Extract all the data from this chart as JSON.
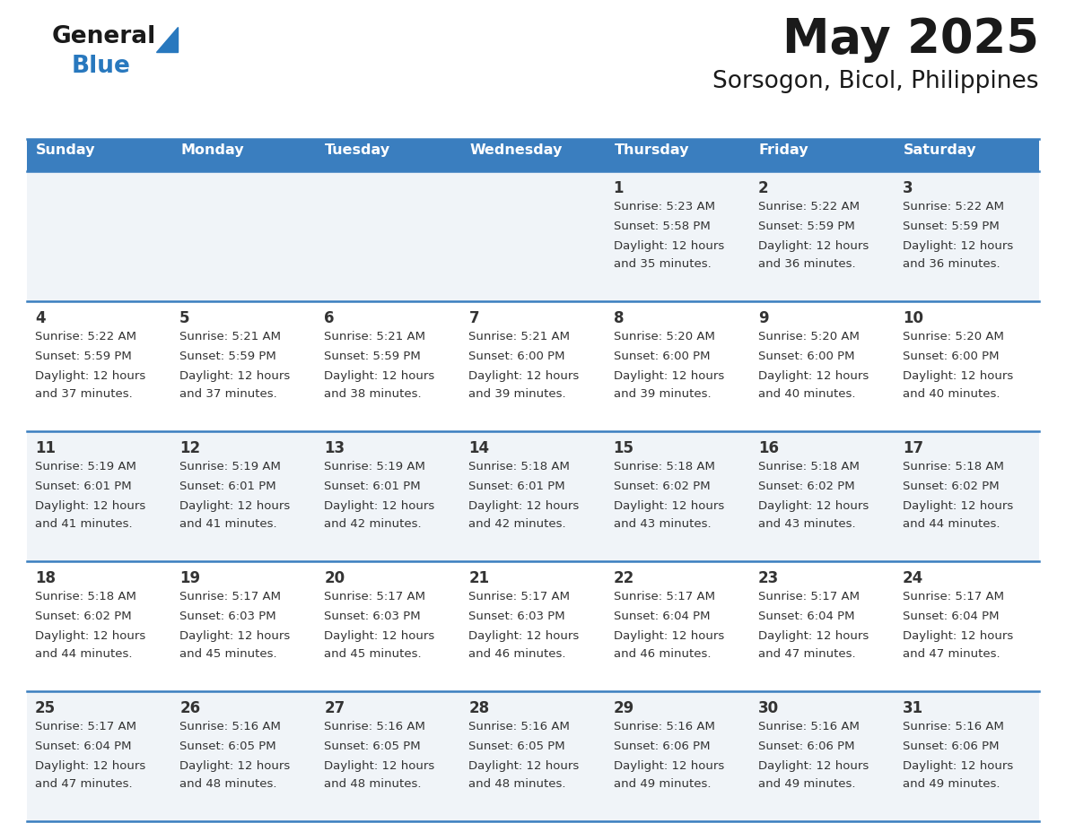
{
  "title": "May 2025",
  "subtitle": "Sorsogon, Bicol, Philippines",
  "days_of_week": [
    "Sunday",
    "Monday",
    "Tuesday",
    "Wednesday",
    "Thursday",
    "Friday",
    "Saturday"
  ],
  "header_bg": "#3a7ebf",
  "header_text": "#ffffff",
  "row_bg_odd": "#f0f4f8",
  "row_bg_even": "#ffffff",
  "cell_text": "#333333",
  "divider_color": "#3a7ebf",
  "logo_text_color": "#1a1a1a",
  "logo_blue_color": "#2878be",
  "triangle_color": "#2878be",
  "calendar": [
    [
      null,
      null,
      null,
      null,
      {
        "day": 1,
        "sunrise": "5:23 AM",
        "sunset": "5:58 PM",
        "daylight": "12 hours and 35 minutes."
      },
      {
        "day": 2,
        "sunrise": "5:22 AM",
        "sunset": "5:59 PM",
        "daylight": "12 hours and 36 minutes."
      },
      {
        "day": 3,
        "sunrise": "5:22 AM",
        "sunset": "5:59 PM",
        "daylight": "12 hours and 36 minutes."
      }
    ],
    [
      {
        "day": 4,
        "sunrise": "5:22 AM",
        "sunset": "5:59 PM",
        "daylight": "12 hours and 37 minutes."
      },
      {
        "day": 5,
        "sunrise": "5:21 AM",
        "sunset": "5:59 PM",
        "daylight": "12 hours and 37 minutes."
      },
      {
        "day": 6,
        "sunrise": "5:21 AM",
        "sunset": "5:59 PM",
        "daylight": "12 hours and 38 minutes."
      },
      {
        "day": 7,
        "sunrise": "5:21 AM",
        "sunset": "6:00 PM",
        "daylight": "12 hours and 39 minutes."
      },
      {
        "day": 8,
        "sunrise": "5:20 AM",
        "sunset": "6:00 PM",
        "daylight": "12 hours and 39 minutes."
      },
      {
        "day": 9,
        "sunrise": "5:20 AM",
        "sunset": "6:00 PM",
        "daylight": "12 hours and 40 minutes."
      },
      {
        "day": 10,
        "sunrise": "5:20 AM",
        "sunset": "6:00 PM",
        "daylight": "12 hours and 40 minutes."
      }
    ],
    [
      {
        "day": 11,
        "sunrise": "5:19 AM",
        "sunset": "6:01 PM",
        "daylight": "12 hours and 41 minutes."
      },
      {
        "day": 12,
        "sunrise": "5:19 AM",
        "sunset": "6:01 PM",
        "daylight": "12 hours and 41 minutes."
      },
      {
        "day": 13,
        "sunrise": "5:19 AM",
        "sunset": "6:01 PM",
        "daylight": "12 hours and 42 minutes."
      },
      {
        "day": 14,
        "sunrise": "5:18 AM",
        "sunset": "6:01 PM",
        "daylight": "12 hours and 42 minutes."
      },
      {
        "day": 15,
        "sunrise": "5:18 AM",
        "sunset": "6:02 PM",
        "daylight": "12 hours and 43 minutes."
      },
      {
        "day": 16,
        "sunrise": "5:18 AM",
        "sunset": "6:02 PM",
        "daylight": "12 hours and 43 minutes."
      },
      {
        "day": 17,
        "sunrise": "5:18 AM",
        "sunset": "6:02 PM",
        "daylight": "12 hours and 44 minutes."
      }
    ],
    [
      {
        "day": 18,
        "sunrise": "5:18 AM",
        "sunset": "6:02 PM",
        "daylight": "12 hours and 44 minutes."
      },
      {
        "day": 19,
        "sunrise": "5:17 AM",
        "sunset": "6:03 PM",
        "daylight": "12 hours and 45 minutes."
      },
      {
        "day": 20,
        "sunrise": "5:17 AM",
        "sunset": "6:03 PM",
        "daylight": "12 hours and 45 minutes."
      },
      {
        "day": 21,
        "sunrise": "5:17 AM",
        "sunset": "6:03 PM",
        "daylight": "12 hours and 46 minutes."
      },
      {
        "day": 22,
        "sunrise": "5:17 AM",
        "sunset": "6:04 PM",
        "daylight": "12 hours and 46 minutes."
      },
      {
        "day": 23,
        "sunrise": "5:17 AM",
        "sunset": "6:04 PM",
        "daylight": "12 hours and 47 minutes."
      },
      {
        "day": 24,
        "sunrise": "5:17 AM",
        "sunset": "6:04 PM",
        "daylight": "12 hours and 47 minutes."
      }
    ],
    [
      {
        "day": 25,
        "sunrise": "5:17 AM",
        "sunset": "6:04 PM",
        "daylight": "12 hours and 47 minutes."
      },
      {
        "day": 26,
        "sunrise": "5:16 AM",
        "sunset": "6:05 PM",
        "daylight": "12 hours and 48 minutes."
      },
      {
        "day": 27,
        "sunrise": "5:16 AM",
        "sunset": "6:05 PM",
        "daylight": "12 hours and 48 minutes."
      },
      {
        "day": 28,
        "sunrise": "5:16 AM",
        "sunset": "6:05 PM",
        "daylight": "12 hours and 48 minutes."
      },
      {
        "day": 29,
        "sunrise": "5:16 AM",
        "sunset": "6:06 PM",
        "daylight": "12 hours and 49 minutes."
      },
      {
        "day": 30,
        "sunrise": "5:16 AM",
        "sunset": "6:06 PM",
        "daylight": "12 hours and 49 minutes."
      },
      {
        "day": 31,
        "sunrise": "5:16 AM",
        "sunset": "6:06 PM",
        "daylight": "12 hours and 49 minutes."
      }
    ]
  ]
}
